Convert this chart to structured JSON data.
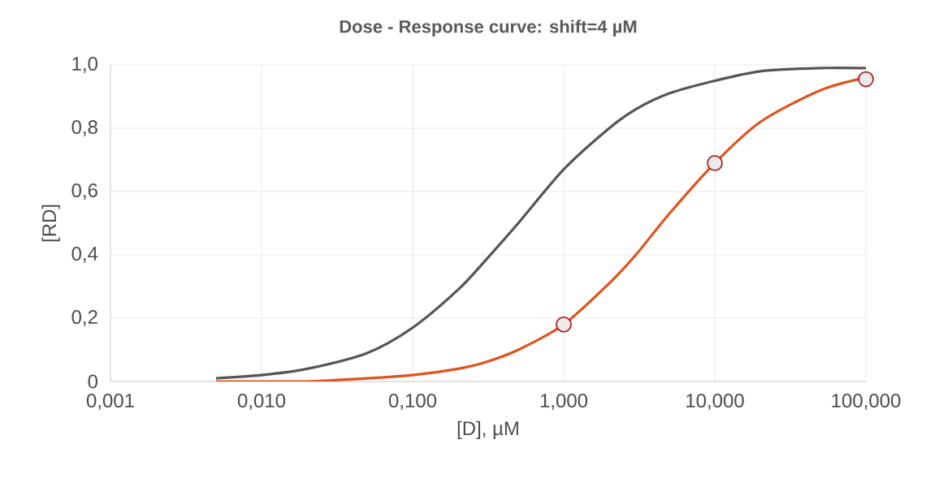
{
  "chart_data": {
    "type": "line",
    "title": "Dose - Response curve: shift=4 µM",
    "xlabel": "[D], µM",
    "ylabel": "[RD]",
    "log": "x",
    "grid": true,
    "marker": "none",
    "xlim": [
      0.001,
      100
    ],
    "ylim": [
      0,
      1
    ],
    "xticks": [
      {
        "value": 0.001,
        "label": "0,001"
      },
      {
        "value": 0.01,
        "label": "0,010"
      },
      {
        "value": 0.1,
        "label": "0,100"
      },
      {
        "value": 1,
        "label": "1,000"
      },
      {
        "value": 10,
        "label": "10,000"
      },
      {
        "value": 100,
        "label": "100,000"
      }
    ],
    "yticks": [
      0,
      {
        "value": 0.2,
        "label": "0,2"
      },
      {
        "value": 0.4,
        "label": "0,4"
      },
      {
        "value": 0.6,
        "label": "0,6"
      },
      {
        "value": 0.8,
        "label": "0,8"
      },
      {
        "value": 1,
        "label": "1,0"
      }
    ],
    "series": [
      {
        "color": "#555555",
        "x": [
          0.005,
          0.01,
          0.02,
          0.05,
          0.1,
          0.2,
          0.3,
          0.5,
          1,
          2,
          3,
          5,
          10,
          20,
          50,
          100
        ],
        "values": [
          0.01,
          0.02,
          0.04,
          0.09,
          0.17,
          0.29,
          0.38,
          0.5,
          0.67,
          0.8,
          0.86,
          0.91,
          0.95,
          0.98,
          0.99,
          0.99
        ]
      },
      {
        "color": "#e0531d",
        "x": [
          0.005,
          0.01,
          0.02,
          0.05,
          0.1,
          0.2,
          0.3,
          0.5,
          1,
          2,
          3,
          5,
          10,
          20,
          50,
          100
        ],
        "values": [
          0.0,
          0.0,
          0.0,
          0.01,
          0.02,
          0.04,
          0.06,
          0.1,
          0.18,
          0.31,
          0.4,
          0.53,
          0.69,
          0.82,
          0.92,
          0.96
        ]
      },
      {
        "type": "scatter",
        "color": "#b0202a",
        "marker": "circle",
        "x": [
          1,
          10,
          100
        ],
        "values": [
          0.18,
          0.69,
          0.955
        ]
      }
    ]
  }
}
